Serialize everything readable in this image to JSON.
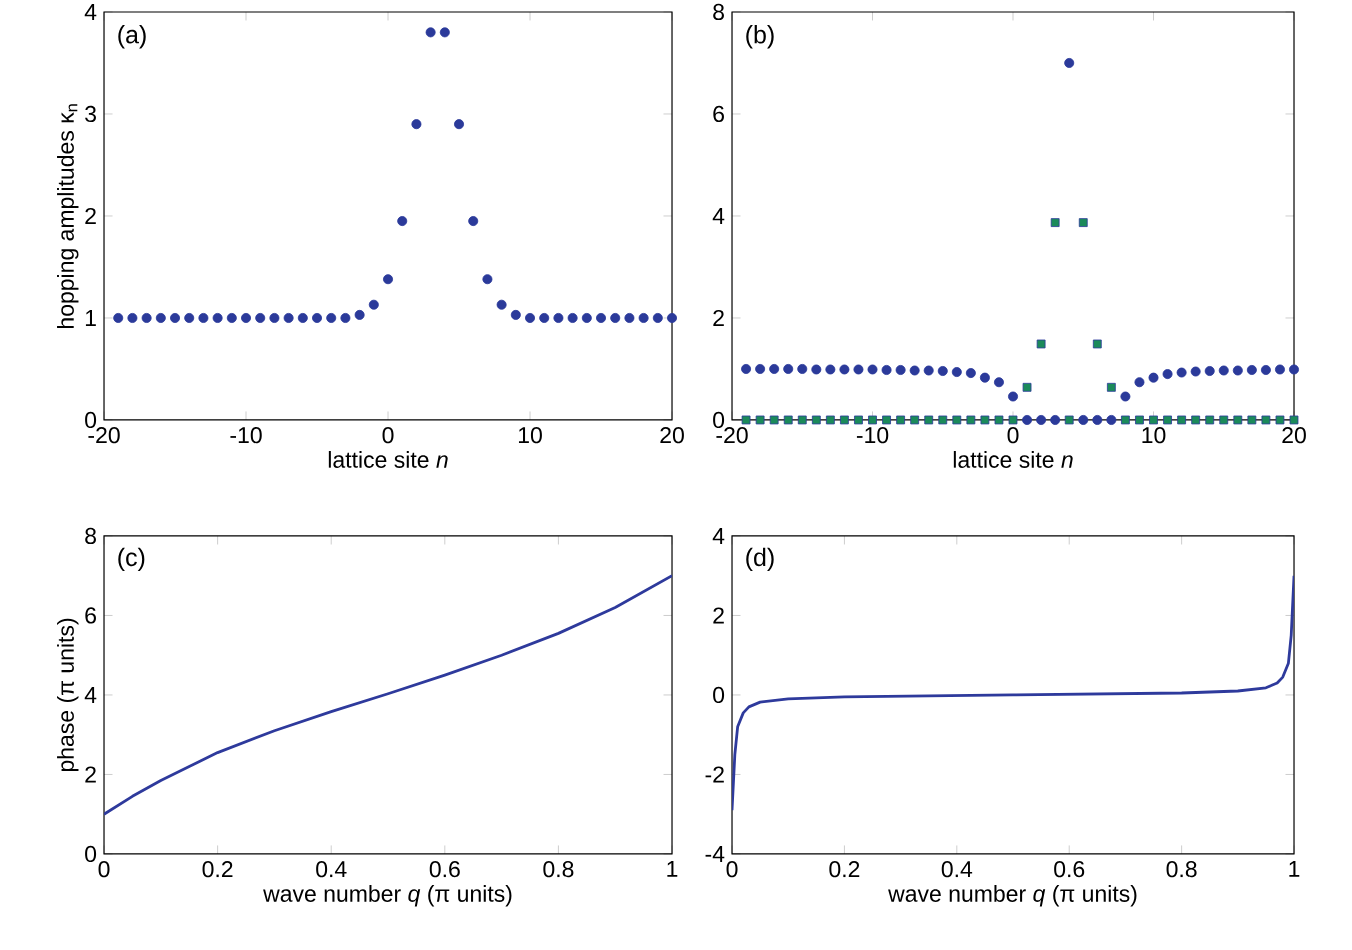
{
  "chart_data": [
    {
      "type": "scatter",
      "ylabel": "hopping amplitudes  κ$_{n}$",
      "xlabel": "lattice site *n*",
      "annotations": [
        "(a)"
      ],
      "xlim": [
        -20,
        20
      ],
      "xticks": [
        -20,
        -10,
        0,
        10,
        20
      ],
      "ylim": [
        0,
        4
      ],
      "yticks": [
        0,
        1,
        2,
        3,
        4
      ],
      "series": [
        {
          "color": "#2b3a9a",
          "marker": "circle",
          "x": [
            -19,
            -18,
            -17,
            -16,
            -15,
            -14,
            -13,
            -12,
            -11,
            -10,
            -9,
            -8,
            -7,
            -6,
            -5,
            -4,
            -3,
            -2,
            -1,
            0,
            1,
            2,
            3,
            4,
            5,
            6,
            7,
            8,
            9,
            10,
            11,
            12,
            13,
            14,
            15,
            16,
            17,
            18,
            19,
            20
          ],
          "values": [
            1.0,
            1.0,
            1.0,
            1.0,
            1.0,
            1.0,
            1.0,
            1.0,
            1.0,
            1.0,
            1.0,
            1.0,
            1.0,
            1.0,
            1.0,
            1.0,
            1.0,
            1.03,
            1.13,
            1.38,
            1.95,
            2.9,
            3.8,
            3.8,
            2.9,
            1.95,
            1.38,
            1.13,
            1.03,
            1.0,
            1.0,
            1.0,
            1.0,
            1.0,
            1.0,
            1.0,
            1.0,
            1.0,
            1.0,
            1.0
          ]
        }
      ]
    },
    {
      "type": "scatter",
      "xlabel": "lattice site *n*",
      "annotations": [
        "(b)"
      ],
      "xlim": [
        -20,
        20
      ],
      "xticks": [
        -20,
        -10,
        0,
        10,
        20
      ],
      "ylim": [
        0,
        8
      ],
      "yticks": [
        0,
        2,
        4,
        6,
        8
      ],
      "series": [
        {
          "color": "#2b3a9a",
          "marker": "circle",
          "x": [
            -19,
            -18,
            -17,
            -16,
            -15,
            -14,
            -13,
            -12,
            -11,
            -10,
            -9,
            -8,
            -7,
            -6,
            -5,
            -4,
            -3,
            -2,
            -1,
            0,
            1,
            2,
            3,
            4,
            5,
            6,
            7,
            8,
            9,
            10,
            11,
            12,
            13,
            14,
            15,
            16,
            17,
            18,
            19,
            20
          ],
          "values": [
            1.0,
            1.0,
            1.0,
            1.0,
            1.0,
            0.99,
            0.99,
            0.99,
            0.99,
            0.99,
            0.98,
            0.98,
            0.97,
            0.97,
            0.96,
            0.94,
            0.92,
            0.83,
            0.74,
            0.46,
            0,
            0,
            0,
            7.0,
            0,
            0,
            0,
            0.46,
            0.74,
            0.83,
            0.9,
            0.93,
            0.95,
            0.96,
            0.97,
            0.97,
            0.98,
            0.98,
            0.99,
            0.99
          ]
        },
        {
          "color": "#1b8a5a",
          "marker": "square",
          "x": [
            -19,
            -18,
            -17,
            -16,
            -15,
            -14,
            -13,
            -12,
            -11,
            -10,
            -9,
            -8,
            -7,
            -6,
            -5,
            -4,
            -3,
            -2,
            -1,
            0,
            1,
            2,
            3,
            4,
            5,
            6,
            7,
            8,
            9,
            10,
            11,
            12,
            13,
            14,
            15,
            16,
            17,
            18,
            19,
            20
          ],
          "values": [
            0,
            0,
            0,
            0,
            0,
            0,
            0,
            0,
            0,
            0,
            0,
            0,
            0,
            0,
            0,
            0,
            0,
            0,
            0,
            0,
            0.64,
            1.49,
            3.87,
            0,
            3.87,
            1.49,
            0.64,
            0,
            0,
            0,
            0,
            0,
            0,
            0,
            0,
            0,
            0,
            0,
            0,
            0
          ]
        }
      ]
    },
    {
      "type": "line",
      "ylabel": "phase (π units)",
      "xlabel": "wave number *q* (π units)",
      "annotations": [
        "(c)"
      ],
      "xlim": [
        0,
        1
      ],
      "xticks": [
        0,
        0.2,
        0.4,
        0.6,
        0.8,
        1
      ],
      "ylim": [
        0,
        8
      ],
      "yticks": [
        0,
        2,
        4,
        6,
        8
      ],
      "series": [
        {
          "color": "#2e3a9c",
          "x": [
            0,
            0.05,
            0.1,
            0.15,
            0.2,
            0.3,
            0.4,
            0.5,
            0.6,
            0.7,
            0.8,
            0.9,
            0.95,
            1.0
          ],
          "values": [
            1.0,
            1.45,
            1.85,
            2.2,
            2.55,
            3.1,
            3.58,
            4.03,
            4.5,
            5.0,
            5.55,
            6.2,
            6.6,
            7.0
          ]
        }
      ]
    },
    {
      "type": "line",
      "xlabel": "wave number *q* (π units)",
      "annotations": [
        "(d)"
      ],
      "xlim": [
        0,
        1
      ],
      "xticks": [
        0,
        0.2,
        0.4,
        0.6,
        0.8,
        1
      ],
      "ylim": [
        -4,
        4
      ],
      "yticks": [
        -4,
        -2,
        0,
        2,
        4
      ],
      "series": [
        {
          "color": "#2e3a9c",
          "x": [
            0,
            0.005,
            0.01,
            0.02,
            0.03,
            0.05,
            0.1,
            0.2,
            0.5,
            0.8,
            0.9,
            0.95,
            0.97,
            0.98,
            0.99,
            0.995,
            1.0
          ],
          "values": [
            -2.9,
            -1.5,
            -0.8,
            -0.45,
            -0.3,
            -0.18,
            -0.1,
            -0.05,
            0,
            0.05,
            0.1,
            0.18,
            0.3,
            0.45,
            0.8,
            1.5,
            3.0
          ]
        }
      ]
    }
  ]
}
